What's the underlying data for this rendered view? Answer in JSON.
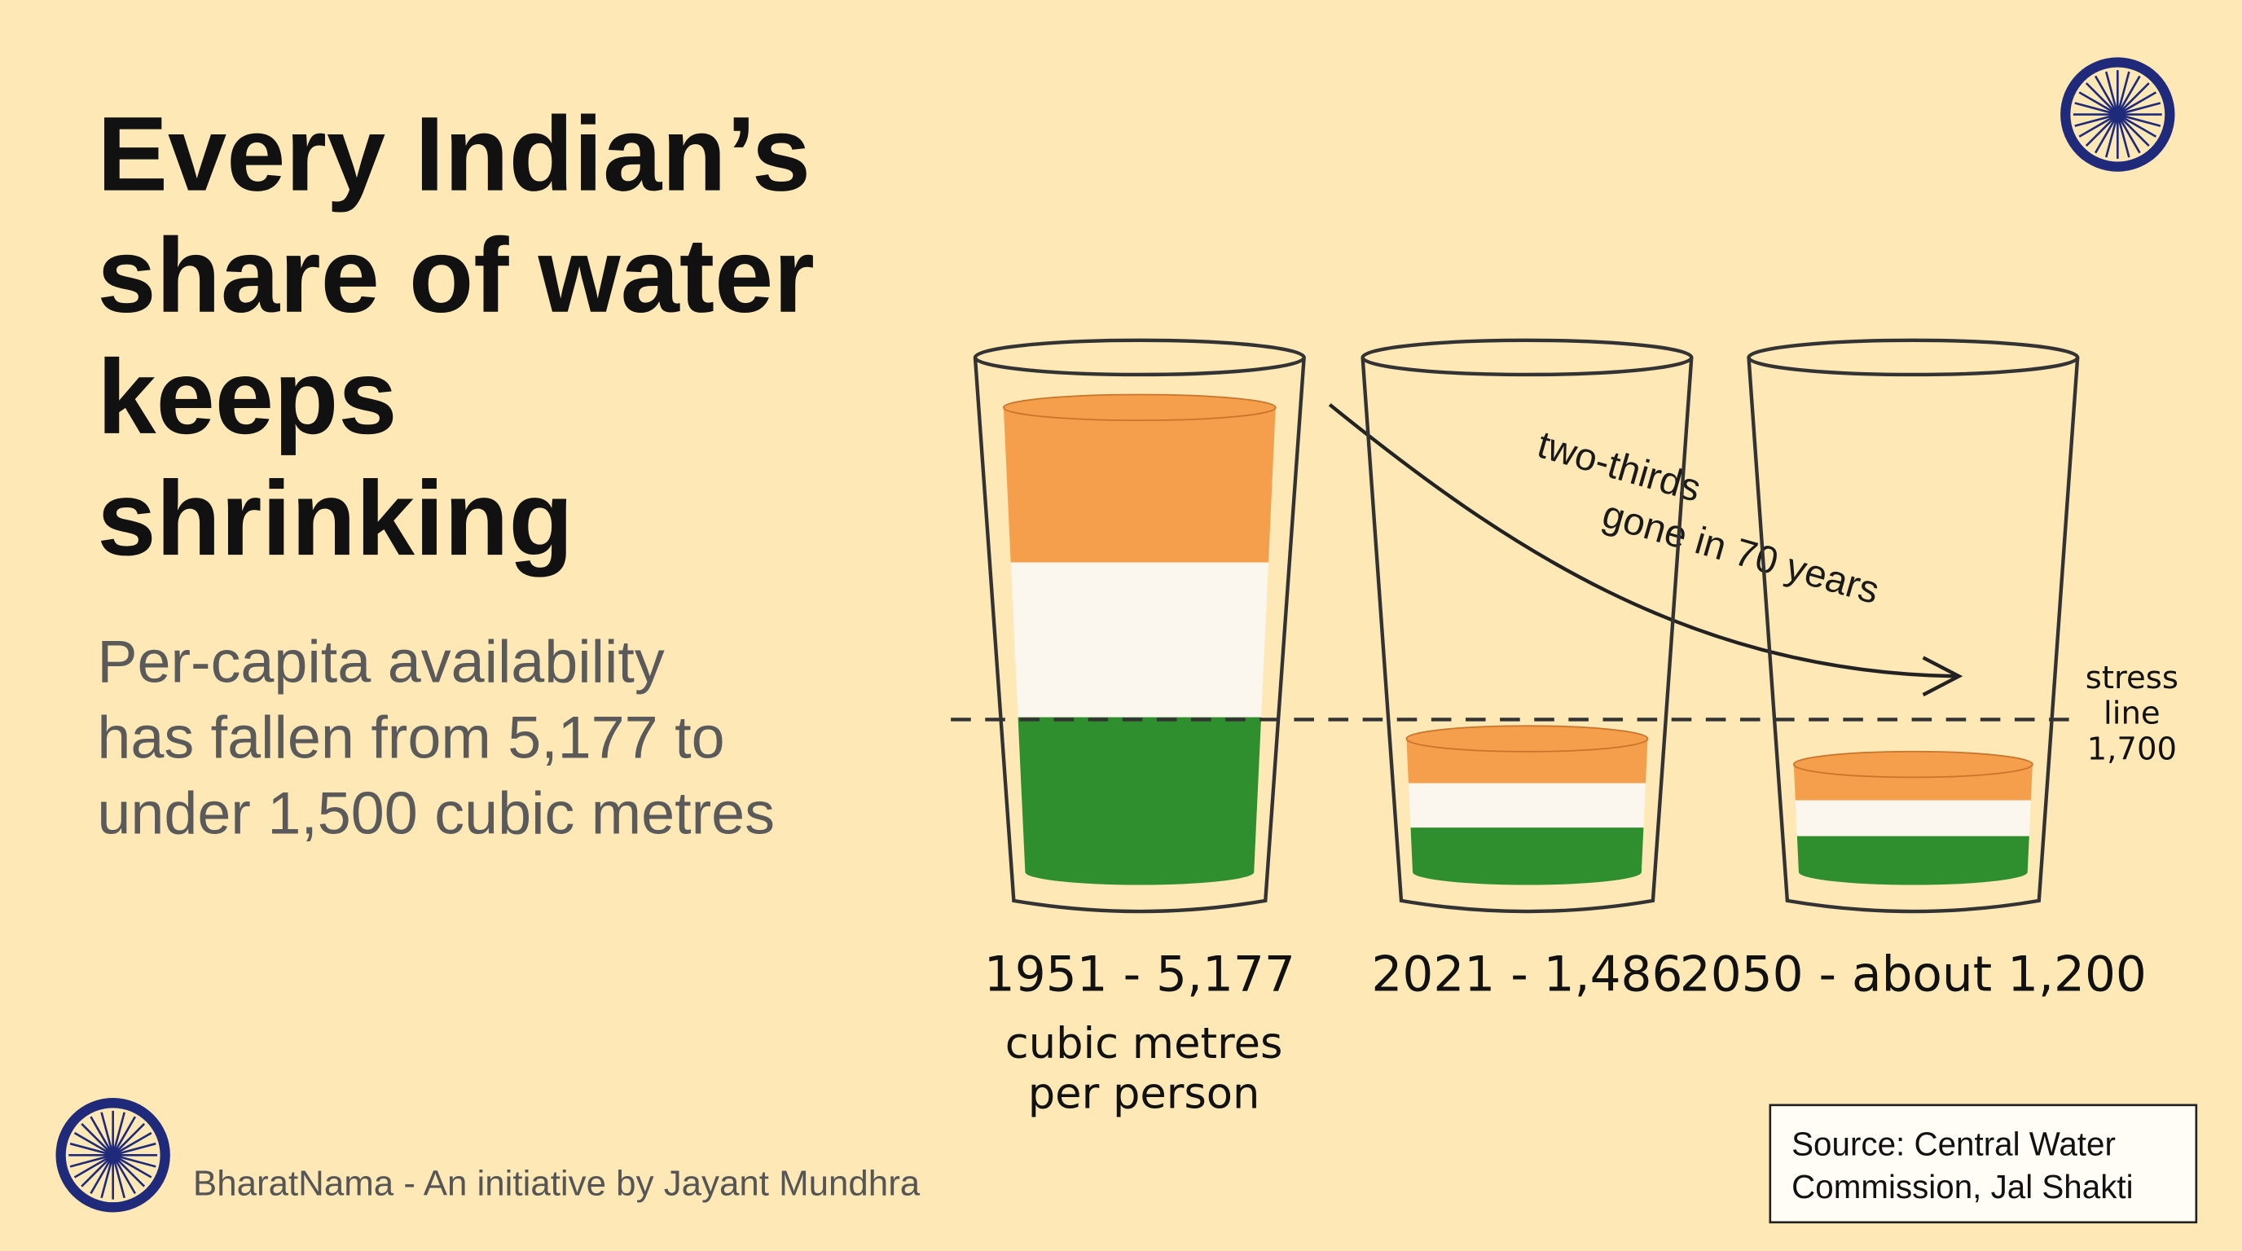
{
  "chart_data": {
    "type": "glass",
    "title": [
      "Every Indian’s",
      "share of water",
      "keeps",
      "shrinking"
    ],
    "subtitle": [
      "Per-capita availability",
      "has fallen from 5,177 to",
      "under 1,500 cubic metres"
    ],
    "values": [
      5177,
      1486,
      1200
    ],
    "value_labels": [
      "1951 - 5,177",
      "2021 - 1,486",
      "2050 - about 1,200"
    ],
    "unit_label": [
      "cubic metres",
      "per person"
    ],
    "colors": [
      "#f59f4c",
      "#fbf7ee",
      "#2f8f2f"
    ],
    "reference_line": {
      "value": 1700,
      "label": [
        "stress",
        "line",
        "1,700"
      ]
    },
    "annotation": [
      "two-thirds",
      "gone in 70 years"
    ],
    "footer": "BharatNama - An initiative by Jayant Mundhra",
    "source": [
      "Source: Central Water",
      "Commission, Jal Shakti"
    ]
  }
}
